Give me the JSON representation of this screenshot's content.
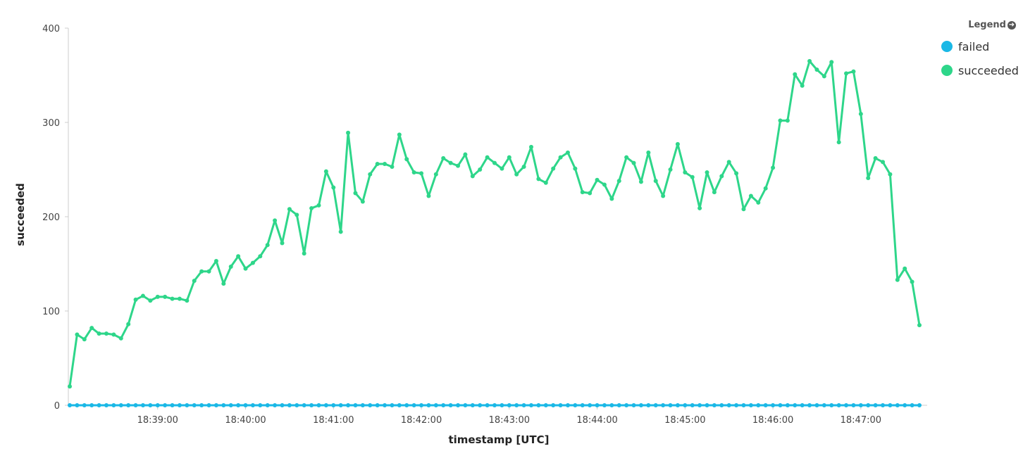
{
  "legend": {
    "title": "Legend",
    "icon": "chevron-right-circle-icon"
  },
  "chart_data": {
    "type": "line",
    "xlabel": "timestamp [UTC]",
    "ylabel": "succeeded",
    "ylim": [
      0,
      400
    ],
    "yticks": [
      0,
      100,
      200,
      300,
      400
    ],
    "x_start": "18:38:00",
    "x_step_seconds": 5,
    "xticks": [
      "18:39:00",
      "18:40:00",
      "18:41:00",
      "18:42:00",
      "18:43:00",
      "18:44:00",
      "18:45:00",
      "18:46:00",
      "18:47:00"
    ],
    "legend_position": "top-right",
    "grid": false,
    "series": [
      {
        "name": "failed",
        "color": "#1ab8e6",
        "values": [
          0,
          0,
          0,
          0,
          0,
          0,
          0,
          0,
          0,
          0,
          0,
          0,
          0,
          0,
          0,
          0,
          0,
          0,
          0,
          0,
          0,
          0,
          0,
          0,
          0,
          0,
          0,
          0,
          0,
          0,
          0,
          0,
          0,
          0,
          0,
          0,
          0,
          0,
          0,
          0,
          0,
          0,
          0,
          0,
          0,
          0,
          0,
          0,
          0,
          0,
          0,
          0,
          0,
          0,
          0,
          0,
          0,
          0,
          0,
          0,
          0,
          0,
          0,
          0,
          0,
          0,
          0,
          0,
          0,
          0,
          0,
          0,
          0,
          0,
          0,
          0,
          0,
          0,
          0,
          0,
          0,
          0,
          0,
          0,
          0,
          0,
          0,
          0,
          0,
          0,
          0,
          0,
          0,
          0,
          0,
          0,
          0,
          0,
          0,
          0,
          0,
          0,
          0,
          0,
          0,
          0,
          0,
          0,
          0,
          0,
          0,
          0,
          0,
          0,
          0,
          0,
          0
        ]
      },
      {
        "name": "succeeded",
        "color": "#2ed68a",
        "values": [
          20,
          75,
          70,
          82,
          76,
          76,
          75,
          71,
          86,
          112,
          116,
          111,
          115,
          115,
          113,
          113,
          111,
          132,
          142,
          142,
          153,
          129,
          147,
          158,
          145,
          151,
          158,
          170,
          196,
          172,
          208,
          202,
          161,
          209,
          212,
          248,
          231,
          184,
          289,
          225,
          216,
          245,
          256,
          256,
          253,
          287,
          261,
          247,
          246,
          222,
          245,
          262,
          257,
          254,
          266,
          243,
          250,
          263,
          257,
          251,
          263,
          245,
          253,
          274,
          240,
          236,
          251,
          263,
          268,
          251,
          226,
          225,
          239,
          234,
          219,
          238,
          263,
          257,
          237,
          268,
          238,
          222,
          250,
          277,
          247,
          242,
          209,
          247,
          226,
          243,
          258,
          246,
          208,
          222,
          215,
          230,
          252,
          302,
          302,
          351,
          339,
          365,
          356,
          349,
          364,
          279,
          352,
          354,
          309,
          241,
          262,
          258,
          245,
          133,
          145,
          131,
          85
        ]
      }
    ]
  }
}
